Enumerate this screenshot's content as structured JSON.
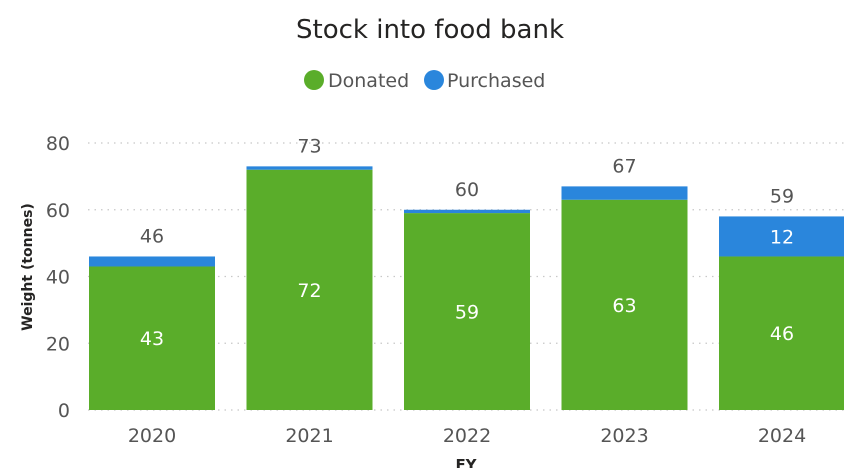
{
  "chart_data": {
    "type": "bar",
    "stacked": true,
    "title": "Stock into food bank",
    "xlabel": "FY",
    "ylabel": "Weight (tonnes)",
    "categories": [
      "2020",
      "2021",
      "2022",
      "2023",
      "2024"
    ],
    "series": [
      {
        "name": "Donated",
        "color": "#5aad2a",
        "values": [
          43,
          72,
          59,
          63,
          46
        ]
      },
      {
        "name": "Purchased",
        "color": "#2a86dc",
        "values": [
          3,
          1,
          1,
          4,
          12
        ]
      }
    ],
    "totals": [
      46,
      73,
      60,
      67,
      59
    ],
    "segment_labels": {
      "Donated": [
        "43",
        "72",
        "59",
        "63",
        "46"
      ],
      "Purchased": [
        "",
        "",
        "",
        "",
        "12"
      ]
    },
    "ylim": [
      0,
      80
    ],
    "yticks": [
      0,
      20,
      40,
      60,
      80
    ],
    "grid": true,
    "legend_position": "top-center"
  }
}
